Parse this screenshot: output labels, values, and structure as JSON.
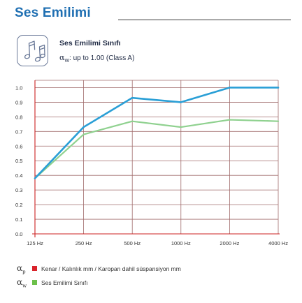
{
  "header": {
    "title": "Ses Emilimi"
  },
  "info": {
    "icon": "music-notes-icon",
    "title": "Ses Emilimi Sınıfı",
    "symbol": "α",
    "symbol_sub": "W",
    "value": ": up to 1.00 (Class A)"
  },
  "colors": {
    "accent": "#1f6fb2",
    "grid": "#a06b6b",
    "axis": "#cc2222",
    "series_ap": "#2a9fd6",
    "series_aw": "#8fd18f",
    "legend_ap": "#d9232b",
    "legend_aw": "#6cc04a"
  },
  "chart_data": {
    "type": "line",
    "x": [
      "125 Hz",
      "250 Hz",
      "500 Hz",
      "1000 Hz",
      "2000 Hz",
      "4000 Hz"
    ],
    "y_ticks": [
      "0.0",
      "0.1",
      "0.2",
      "0.3",
      "0.4",
      "0.5",
      "0.6",
      "0.7",
      "0.8",
      "0.9",
      "1.0"
    ],
    "ylim": [
      0,
      1.05
    ],
    "grid": true,
    "series": [
      {
        "name": "Kenar / Kalınlık mm / Karopan dahil süspansiyon mm",
        "values": [
          0.38,
          0.73,
          0.93,
          0.9,
          1.0,
          1.0
        ]
      },
      {
        "name": "Ses Emilimi Sınıfı",
        "values": [
          0.38,
          0.68,
          0.77,
          0.73,
          0.78,
          0.77
        ]
      }
    ]
  },
  "legend": {
    "items": [
      {
        "symbol": "α",
        "sub": "p",
        "label": "Kenar / Kalınlık mm / Karopan dahil süspansiyon mm"
      },
      {
        "symbol": "α",
        "sub": "w",
        "label": "Ses Emilimi Sınıfı"
      }
    ]
  }
}
